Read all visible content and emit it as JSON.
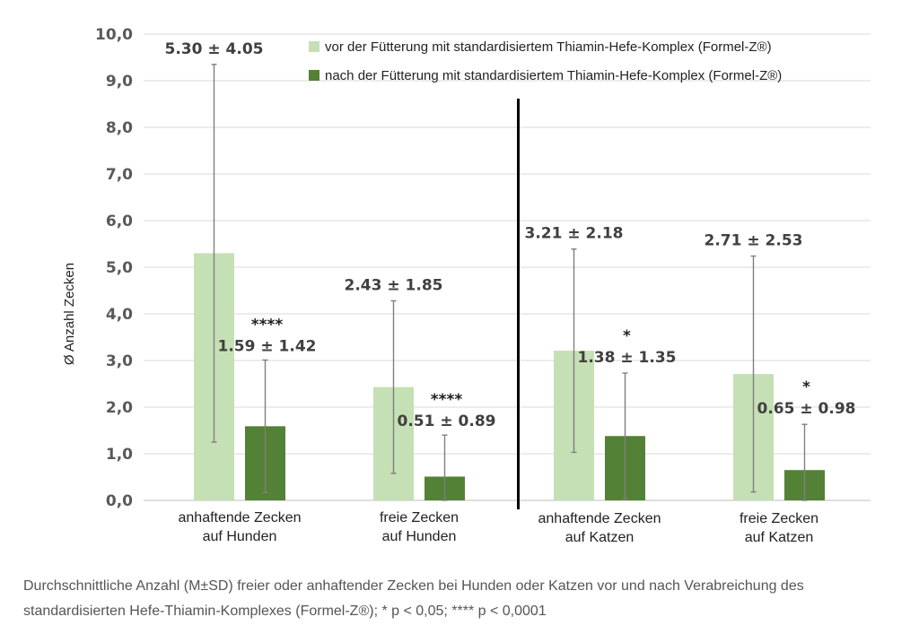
{
  "chart_data": {
    "type": "bar",
    "ylabel": "Ø Anzahl Zecken",
    "ylim": [
      0,
      10
    ],
    "yticks": [
      "0,0",
      "1,0",
      "2,0",
      "3,0",
      "4,0",
      "5,0",
      "6,0",
      "7,0",
      "8,0",
      "9,0",
      "10,0"
    ],
    "grid": true,
    "legend_position": "top-right",
    "categories": [
      [
        "anhaftende Zecken",
        "auf Hunden"
      ],
      [
        "freie Zecken",
        "auf Hunden"
      ],
      [
        "anhaftende Zecken",
        "auf Katzen"
      ],
      [
        "freie Zecken",
        "auf Katzen"
      ]
    ],
    "series": [
      {
        "name": "vor der Fütterung mit standardisiertem Thiamin-Hefe-Komplex (Formel-Z®)",
        "color": "#c5e0b4",
        "values": [
          5.3,
          2.43,
          3.21,
          2.71
        ],
        "sd": [
          4.05,
          1.85,
          2.18,
          2.53
        ],
        "labels": [
          "5.30  ± 4.05",
          "2.43 ± 1.85",
          "3.21 ± 2.18",
          "2.71 ± 2.53"
        ],
        "significance": [
          "",
          "",
          "",
          ""
        ]
      },
      {
        "name": "nach der Fütterung mit standardisiertem Thiamin-Hefe-Komplex (Formel-Z®)",
        "color": "#538135",
        "values": [
          1.59,
          0.51,
          1.38,
          0.65
        ],
        "sd": [
          1.42,
          0.89,
          1.35,
          0.98
        ],
        "labels": [
          "1.59 ± 1.42",
          "0.51 ± 0.89",
          "1.38 ± 1.35",
          "0.65 ±  0.98"
        ],
        "significance": [
          "****",
          "****",
          "*",
          "*"
        ]
      }
    ],
    "divider_after_category": 1
  },
  "caption": {
    "line1": "Durchschnittliche Anzahl (M±SD) freier oder anhaftender Zecken bei Hunden oder Katzen vor und nach Verabreichung des",
    "line2": "standardisierten Hefe-Thiamin-Komplexes (Formel-Z®); * p < 0,05; **** p < 0,0001"
  }
}
